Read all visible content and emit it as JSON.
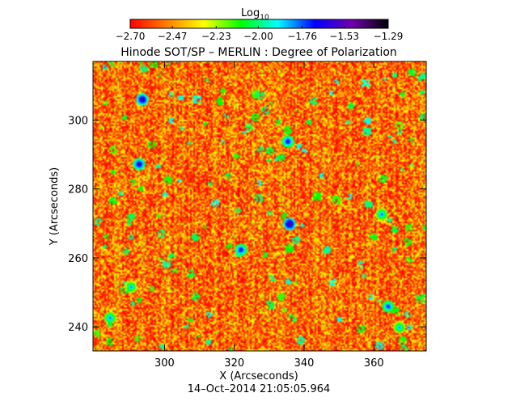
{
  "chart_data": {
    "type": "heatmap",
    "title": "Hinode SOT/SP – MERLIN : Degree of Polarization",
    "xlabel": "X (Arcseconds)",
    "ylabel": "Y (Arcseconds)",
    "xlim": [
      279.5,
      375
    ],
    "ylim": [
      233,
      317
    ],
    "xticks": [
      300,
      320,
      340,
      360
    ],
    "yticks": [
      240,
      260,
      280,
      300
    ],
    "grid": false,
    "colorbar": {
      "label_base": "Log",
      "label_sub": "10",
      "range": [
        -2.7,
        -1.29
      ],
      "ticks": [
        "-2.70",
        "-2.47",
        "-2.23",
        "-2.00",
        "-1.76",
        "-1.53",
        "-1.29"
      ],
      "colors": [
        "#ff0000",
        "#ff8000",
        "#ffff00",
        "#00ff00",
        "#00ffff",
        "#0000ff",
        "#7000b0",
        "#000000"
      ],
      "placement": "top"
    },
    "field_summary": {
      "typical_value": -2.6,
      "background_range": [
        -2.7,
        -2.25
      ],
      "hotspots": [
        {
          "x": 293.5,
          "y": 306,
          "value": -1.45
        },
        {
          "x": 292.5,
          "y": 287.5,
          "value": -1.5
        },
        {
          "x": 335.5,
          "y": 270,
          "value": -1.4
        },
        {
          "x": 321.5,
          "y": 262.5,
          "value": -1.55
        },
        {
          "x": 335,
          "y": 294,
          "value": -1.55
        },
        {
          "x": 362,
          "y": 273,
          "value": -1.7
        },
        {
          "x": 364,
          "y": 246,
          "value": -1.6
        },
        {
          "x": 367,
          "y": 240,
          "value": -1.75
        },
        {
          "x": 284,
          "y": 243,
          "value": -1.7
        },
        {
          "x": 290,
          "y": 252,
          "value": -1.75
        }
      ]
    }
  },
  "footer": {
    "timestamp": "14–Oct–2014 21:05:05.964"
  }
}
